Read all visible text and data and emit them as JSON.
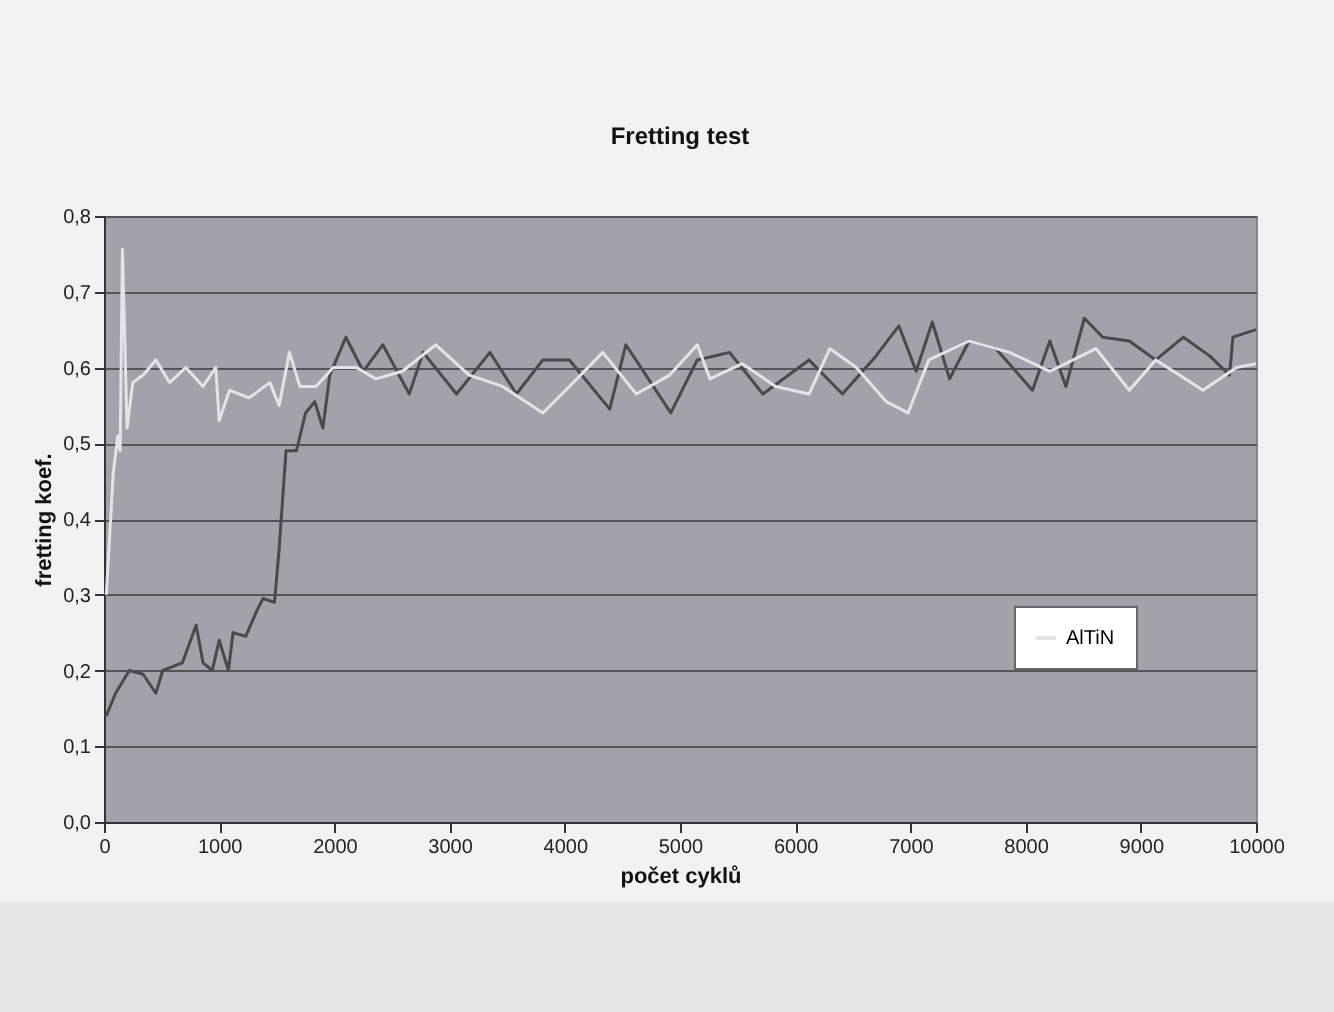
{
  "chart_data": {
    "type": "line",
    "title": "Fretting test",
    "xlabel": "počet cyklů",
    "ylabel": "fretting koef.",
    "xlim": [
      0,
      10000
    ],
    "ylim": [
      0,
      0.8
    ],
    "xticks": [
      0,
      1000,
      2000,
      3000,
      4000,
      5000,
      6000,
      7000,
      8000,
      9000,
      10000
    ],
    "yticks": [
      {
        "value": 0,
        "label": "0,0"
      },
      {
        "value": 0.1,
        "label": "0,1"
      },
      {
        "value": 0.2,
        "label": "0,2"
      },
      {
        "value": 0.3,
        "label": "0,3"
      },
      {
        "value": 0.4,
        "label": "0,4"
      },
      {
        "value": 0.5,
        "label": "0,5"
      },
      {
        "value": 0.6,
        "label": "0,6"
      },
      {
        "value": 0.7,
        "label": "0,7"
      },
      {
        "value": 0.8,
        "label": "0,8"
      }
    ],
    "grid": "y",
    "legend": "bottom right",
    "series": [
      {
        "color": "#4a4a4a",
        "x": [
          20,
          100,
          220,
          340,
          450,
          510,
          680,
          800,
          860,
          940,
          1000,
          1080,
          1120,
          1230,
          1330,
          1380,
          1480,
          1520,
          1580,
          1670,
          1750,
          1830,
          1900,
          1960,
          2100,
          2250,
          2420,
          2650,
          2770,
          3060,
          3350,
          3580,
          3810,
          4040,
          4390,
          4530,
          4920,
          5150,
          5430,
          5720,
          6120,
          6410,
          6700,
          6900,
          7050,
          7190,
          7340,
          7510,
          7740,
          8060,
          8210,
          8350,
          8510,
          8670,
          8900,
          9130,
          9370,
          9600,
          9770,
          9800,
          10000
        ],
        "values": [
          0.14,
          0.17,
          0.2,
          0.195,
          0.17,
          0.2,
          0.21,
          0.26,
          0.21,
          0.2,
          0.24,
          0.2,
          0.25,
          0.245,
          0.28,
          0.295,
          0.29,
          0.36,
          0.49,
          0.49,
          0.54,
          0.555,
          0.52,
          0.59,
          0.64,
          0.595,
          0.63,
          0.565,
          0.62,
          0.565,
          0.62,
          0.565,
          0.61,
          0.61,
          0.545,
          0.63,
          0.54,
          0.61,
          0.62,
          0.565,
          0.61,
          0.565,
          0.615,
          0.655,
          0.595,
          0.66,
          0.585,
          0.635,
          0.625,
          0.57,
          0.635,
          0.575,
          0.665,
          0.64,
          0.635,
          0.61,
          0.64,
          0.615,
          0.59,
          0.64,
          0.65
        ]
      },
      {
        "name": "AlTiN",
        "color": "#e4e4e4",
        "x": [
          20,
          80,
          120,
          140,
          160,
          200,
          250,
          340,
          450,
          570,
          710,
          860,
          970,
          1000,
          1090,
          1260,
          1440,
          1520,
          1610,
          1700,
          1840,
          1990,
          2190,
          2360,
          2590,
          2880,
          3170,
          3460,
          3810,
          4040,
          4330,
          4620,
          4910,
          5150,
          5260,
          5540,
          5830,
          6120,
          6300,
          6530,
          6790,
          6980,
          7160,
          7510,
          7860,
          8210,
          8610,
          8900,
          9130,
          9540,
          9830,
          10000
        ],
        "values": [
          0.3,
          0.46,
          0.51,
          0.49,
          0.756,
          0.52,
          0.58,
          0.59,
          0.61,
          0.58,
          0.6,
          0.575,
          0.6,
          0.53,
          0.57,
          0.56,
          0.58,
          0.55,
          0.62,
          0.575,
          0.575,
          0.6,
          0.6,
          0.585,
          0.595,
          0.63,
          0.59,
          0.575,
          0.54,
          0.575,
          0.62,
          0.565,
          0.59,
          0.63,
          0.585,
          0.605,
          0.575,
          0.565,
          0.625,
          0.6,
          0.555,
          0.54,
          0.61,
          0.635,
          0.62,
          0.595,
          0.625,
          0.57,
          0.61,
          0.57,
          0.6,
          0.605
        ]
      }
    ]
  }
}
